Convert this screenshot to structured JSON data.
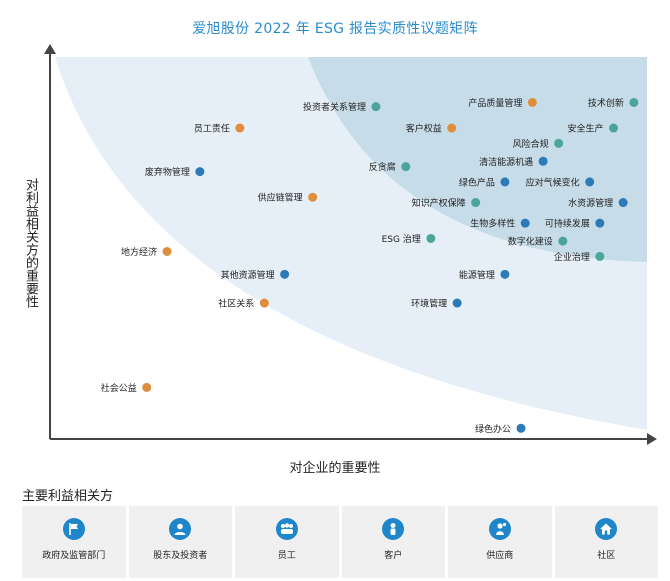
{
  "title": "爱旭股份 2022 年 ESG 报告实质性议题矩阵",
  "colors": {
    "outer_region": "#e6eff7",
    "inner_region": "#c7dce9",
    "orange": "#e08e3c",
    "teal": "#4ba59a",
    "blue": "#2c7ab8",
    "axis": "#444444",
    "stakeholder_icon": "#1f86c9"
  },
  "chart_data": {
    "type": "scatter",
    "title": "爱旭股份 2022 年 ESG 报告实质性议题矩阵",
    "xlabel": "对企业的重要性",
    "ylabel": "对利益相关方的重要性",
    "xlim": [
      0,
      100
    ],
    "ylim": [
      0,
      100
    ],
    "grid": false,
    "points": [
      {
        "label": "投资者关系管理",
        "x": 54.6,
        "y": 87.0,
        "color": "teal"
      },
      {
        "label": "员工责任",
        "x": 31.8,
        "y": 81.4,
        "color": "orange"
      },
      {
        "label": "产品质量管理",
        "x": 80.8,
        "y": 88.1,
        "color": "orange"
      },
      {
        "label": "技术创新",
        "x": 97.8,
        "y": 88.1,
        "color": "teal"
      },
      {
        "label": "客户权益",
        "x": 67.3,
        "y": 81.4,
        "color": "orange"
      },
      {
        "label": "安全生产",
        "x": 94.4,
        "y": 81.4,
        "color": "teal"
      },
      {
        "label": "风险合规",
        "x": 85.2,
        "y": 77.4,
        "color": "teal"
      },
      {
        "label": "清洁能源机遇",
        "x": 82.6,
        "y": 72.7,
        "color": "blue"
      },
      {
        "label": "废弃物管理",
        "x": 25.1,
        "y": 70.0,
        "color": "blue"
      },
      {
        "label": "反贪腐",
        "x": 59.6,
        "y": 71.3,
        "color": "teal"
      },
      {
        "label": "绿色产品",
        "x": 76.2,
        "y": 67.3,
        "color": "blue"
      },
      {
        "label": "应对气候变化",
        "x": 90.4,
        "y": 67.3,
        "color": "blue"
      },
      {
        "label": "供应链管理",
        "x": 44.0,
        "y": 63.3,
        "color": "orange"
      },
      {
        "label": "知识产权保障",
        "x": 71.3,
        "y": 61.9,
        "color": "teal"
      },
      {
        "label": "水资源管理",
        "x": 96.0,
        "y": 61.9,
        "color": "blue"
      },
      {
        "label": "生物多样性",
        "x": 79.6,
        "y": 56.5,
        "color": "blue"
      },
      {
        "label": "可持续发展",
        "x": 92.1,
        "y": 56.5,
        "color": "blue"
      },
      {
        "label": "ESG 治理",
        "x": 63.8,
        "y": 52.5,
        "color": "teal"
      },
      {
        "label": "数字化建设",
        "x": 85.9,
        "y": 51.8,
        "color": "teal"
      },
      {
        "label": "地方经济",
        "x": 19.6,
        "y": 49.1,
        "color": "orange"
      },
      {
        "label": "企业治理",
        "x": 92.1,
        "y": 47.8,
        "color": "teal"
      },
      {
        "label": "其他资源管理",
        "x": 39.3,
        "y": 43.1,
        "color": "blue"
      },
      {
        "label": "能源管理",
        "x": 76.2,
        "y": 43.1,
        "color": "blue"
      },
      {
        "label": "社区关系",
        "x": 35.9,
        "y": 35.6,
        "color": "orange"
      },
      {
        "label": "环境管理",
        "x": 68.2,
        "y": 35.6,
        "color": "blue"
      },
      {
        "label": "社会公益",
        "x": 16.2,
        "y": 13.5,
        "color": "orange"
      },
      {
        "label": "绿色办公",
        "x": 78.9,
        "y": 2.8,
        "color": "blue"
      }
    ]
  },
  "stakeholders": {
    "title": "主要利益相关方",
    "items": [
      {
        "label": "政府及监管部门",
        "icon": "flag-icon"
      },
      {
        "label": "股东及投资者",
        "icon": "investor-icon"
      },
      {
        "label": "员工",
        "icon": "employees-icon"
      },
      {
        "label": "客户",
        "icon": "customer-icon"
      },
      {
        "label": "供应商",
        "icon": "supplier-icon"
      },
      {
        "label": "社区",
        "icon": "home-icon"
      }
    ]
  }
}
